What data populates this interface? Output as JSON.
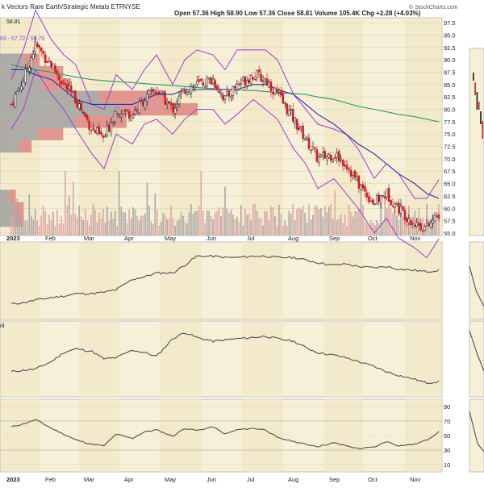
{
  "header": {
    "title": "k Vectors Rare Earth/Strategic Metals ETF",
    "exchange": "NYSE",
    "ohlc": "Open 57.36  High 58.90  Low 57.36  Close 58.81  Volume 105.4K  Chg +2.28 (+4.03%)",
    "watermark": "© StockCharts.com",
    "price_tag": "58.81",
    "bb_label": "69 - 57.72 - 59.75"
  },
  "colors": {
    "background": "#f7f0d8",
    "alt_band": "#f0e6c2",
    "up": "#1a1a1a",
    "down": "#cc1f1f",
    "ma_blue": "#2a2aa8",
    "ma_green": "#2e9a66",
    "bb_purple": "#9e3bd0",
    "volume": "#a8a8a8",
    "volume_down": "#e0a6a6",
    "line_gray": "#505050"
  },
  "chart_data": [
    {
      "type": "candlestick",
      "panel": "price",
      "title": "k Vectors Rare Earth/Strategic Metals ETF",
      "xlabel": "",
      "ylabel": "",
      "month_labels": [
        "2023",
        "Feb",
        "Mar",
        "Apr",
        "May",
        "Jun",
        "Jul",
        "Aug",
        "Sep",
        "Oct",
        "Nov"
      ],
      "ylim": [
        54.5,
        98.5
      ],
      "yticks": [
        "97.5",
        "95.0",
        "92.5",
        "90.0",
        "87.5",
        "85.0",
        "82.5",
        "80.0",
        "77.5",
        "75.0",
        "72.5",
        "70.0",
        "67.5",
        "65.0",
        "62.5",
        "60.0",
        "57.5",
        "55.0"
      ],
      "close_series": {
        "month_index": [
          0,
          0.3,
          0.6,
          1.0,
          1.3,
          1.6,
          2.0,
          2.3,
          2.6,
          3.0,
          3.3,
          3.6,
          4.0,
          4.3,
          4.6,
          5.0,
          5.3,
          5.6,
          6.0,
          6.3,
          6.6,
          7.0,
          7.3,
          7.6,
          8.0,
          8.3,
          8.6,
          9.0,
          9.3,
          9.6,
          10.0,
          10.3,
          10.6
        ],
        "values": [
          81,
          86,
          93,
          89,
          85,
          82,
          76,
          74,
          80,
          79,
          82,
          84,
          80,
          84,
          85,
          86,
          82,
          85,
          87,
          86,
          83,
          78,
          74,
          70,
          71,
          69,
          65,
          61,
          63,
          60,
          57,
          56,
          58.81
        ]
      },
      "ma_50": [
        88,
        88,
        87,
        86,
        84,
        82,
        81,
        81,
        81,
        81,
        82,
        83,
        83,
        84,
        84,
        84,
        84,
        84,
        85,
        85,
        84,
        83,
        81,
        79,
        77,
        75,
        73,
        71,
        69,
        67,
        65,
        63,
        62
      ],
      "ma_200": [
        89,
        88.5,
        88,
        87.5,
        87,
        86.5,
        86,
        85.8,
        85.6,
        85.4,
        85.2,
        85,
        84.8,
        84.6,
        84.4,
        84.2,
        84,
        83.9,
        83.8,
        83.6,
        83.4,
        83.2,
        83,
        82.5,
        82,
        81.3,
        80.6,
        80,
        79.5,
        79,
        78.5,
        78,
        77.5
      ],
      "volume_by_price": [
        {
          "price": 57.5,
          "value": 3
        },
        {
          "price": 60.0,
          "value": 3
        },
        {
          "price": 62.5,
          "value": 2
        },
        {
          "price": 72.5,
          "value": 4
        },
        {
          "price": 75.0,
          "value": 8
        },
        {
          "price": 77.5,
          "value": 16
        },
        {
          "price": 80.0,
          "value": 25
        },
        {
          "price": 82.5,
          "value": 21
        },
        {
          "price": 85.0,
          "value": 9
        },
        {
          "price": 87.5,
          "value": 8
        },
        {
          "price": 90.0,
          "value": 5
        }
      ]
    },
    {
      "type": "line",
      "panel": "indicator_1",
      "series": [
        {
          "values": [
            42,
            43,
            45,
            47,
            48,
            50,
            50,
            51,
            53,
            61,
            63,
            66,
            66,
            72,
            79,
            79,
            78,
            78,
            79,
            79,
            78,
            78,
            76,
            74,
            72,
            73,
            71,
            70,
            71,
            69,
            68,
            67,
            68
          ]
        }
      ],
      "ylim": [
        30,
        90
      ]
    },
    {
      "type": "line",
      "panel": "indicator_2",
      "label": "ol",
      "series": [
        {
          "values": [
            30,
            31,
            32,
            38,
            45,
            48,
            46,
            40,
            41,
            47,
            45,
            42,
            56,
            61,
            57,
            54,
            55,
            56,
            57,
            58,
            56,
            54,
            49,
            45,
            43,
            41,
            38,
            34,
            30,
            27,
            24,
            21,
            22
          ]
        }
      ],
      "ylim": [
        10,
        70
      ]
    },
    {
      "type": "line",
      "panel": "rsi",
      "yticks": [
        "90",
        "70",
        "50",
        "30",
        "10"
      ],
      "ylim": [
        0,
        100
      ],
      "series": [
        {
          "values": [
            62,
            66,
            72,
            60,
            52,
            44,
            38,
            36,
            52,
            46,
            55,
            58,
            49,
            60,
            57,
            62,
            52,
            58,
            60,
            58,
            47,
            42,
            38,
            35,
            40,
            36,
            32,
            34,
            42,
            36,
            38,
            44,
            55
          ]
        }
      ]
    }
  ]
}
